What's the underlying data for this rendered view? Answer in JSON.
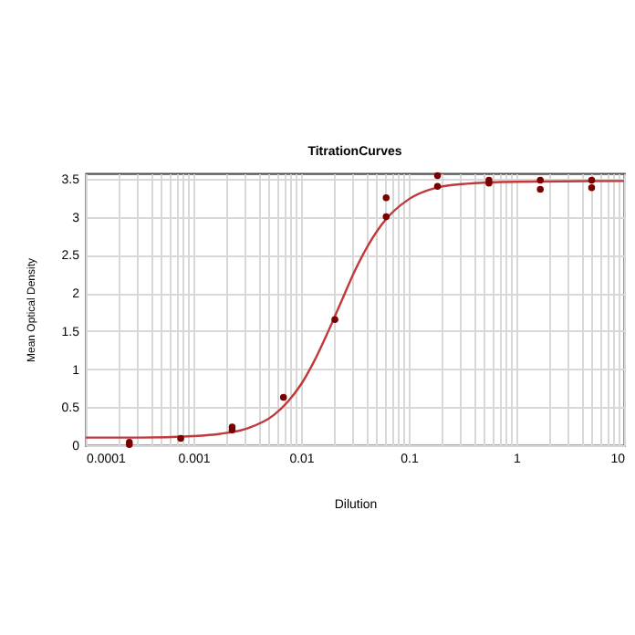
{
  "chart_data": {
    "type": "scatter",
    "title": "TitrationCurves",
    "xlabel": "Dilution",
    "ylabel": "Mean Optical Density",
    "log": "x",
    "grid": true,
    "xlim": [
      0.0001,
      10
    ],
    "ylim": [
      0,
      3.57
    ],
    "xticks": [
      0.0001,
      {
        "value": 0.0002,
        "label": null
      },
      {
        "value": 0.0003,
        "label": null
      },
      {
        "value": 0.0004,
        "label": null
      },
      {
        "value": 0.0005,
        "label": null
      },
      {
        "value": 0.0006,
        "label": null
      },
      {
        "value": 0.0007,
        "label": null
      },
      {
        "value": 0.0008,
        "label": null
      },
      {
        "value": 0.0009,
        "label": null
      },
      0.001,
      {
        "value": 0.002,
        "label": null
      },
      {
        "value": 0.003,
        "label": null
      },
      {
        "value": 0.004,
        "label": null
      },
      {
        "value": 0.005,
        "label": null
      },
      {
        "value": 0.006,
        "label": null
      },
      {
        "value": 0.007,
        "label": null
      },
      {
        "value": 0.008,
        "label": null
      },
      {
        "value": 0.009,
        "label": null
      },
      0.01,
      {
        "value": 0.02,
        "label": null
      },
      {
        "value": 0.03,
        "label": null
      },
      {
        "value": 0.04,
        "label": null
      },
      {
        "value": 0.05,
        "label": null
      },
      {
        "value": 0.06,
        "label": null
      },
      {
        "value": 0.07,
        "label": null
      },
      {
        "value": 0.08,
        "label": null
      },
      {
        "value": 0.09,
        "label": null
      },
      0.1,
      {
        "value": 0.2,
        "label": null
      },
      {
        "value": 0.3,
        "label": null
      },
      {
        "value": 0.4,
        "label": null
      },
      {
        "value": 0.5,
        "label": null
      },
      {
        "value": 0.6,
        "label": null
      },
      {
        "value": 0.7,
        "label": null
      },
      {
        "value": 0.8,
        "label": null
      },
      {
        "value": 0.9,
        "label": null
      },
      1,
      {
        "value": 2,
        "label": null
      },
      {
        "value": 3,
        "label": null
      },
      {
        "value": 4,
        "label": null
      },
      {
        "value": 5,
        "label": null
      },
      {
        "value": 6,
        "label": null
      },
      {
        "value": 7,
        "label": null
      },
      {
        "value": 8,
        "label": null
      },
      {
        "value": 9,
        "label": null
      },
      10
    ],
    "yticks": [
      0,
      0.5,
      1,
      1.5,
      2,
      2.5,
      3,
      3.5
    ],
    "series": [
      {
        "type": "line",
        "color": "#c0393b",
        "x": [
          0.0001,
          0.000316,
          0.001,
          0.00178,
          0.00316,
          0.00562,
          0.0075,
          0.01,
          0.0133,
          0.0178,
          0.0237,
          0.0316,
          0.0422,
          0.0562,
          0.1,
          0.178,
          0.316,
          1,
          10
        ],
        "values": [
          0.1,
          0.1,
          0.12,
          0.15,
          0.22,
          0.4,
          0.57,
          0.8,
          1.11,
          1.49,
          1.89,
          2.29,
          2.63,
          2.9,
          3.23,
          3.38,
          3.43,
          3.46,
          3.47
        ]
      },
      {
        "type": "scatter",
        "marker": "circle",
        "color": "#7a0000",
        "x": [
          0.000254,
          0.000254,
          0.000762,
          0.00229,
          0.00229,
          0.00686,
          0.0206,
          0.0617,
          0.0617,
          0.185,
          0.185,
          0.556,
          0.556,
          1.667,
          1.667,
          5,
          5
        ],
        "values": [
          0.04,
          0.01,
          0.09,
          0.24,
          0.2,
          0.63,
          1.65,
          3.25,
          3.0,
          3.54,
          3.4,
          3.48,
          3.44,
          3.48,
          3.36,
          3.48,
          3.38
        ]
      }
    ]
  }
}
